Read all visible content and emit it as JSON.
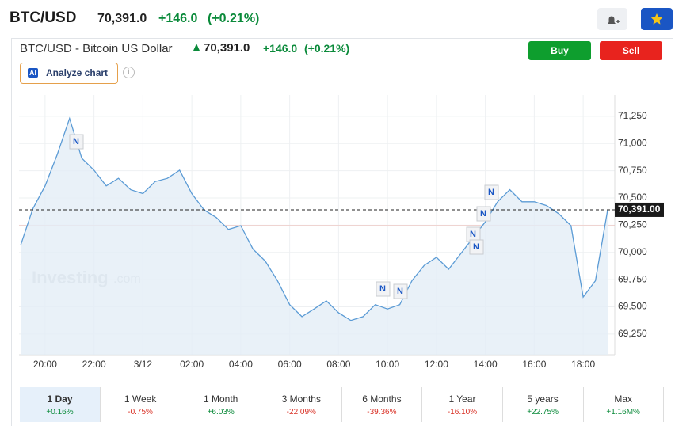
{
  "header": {
    "symbol": "BTC/USD",
    "price": "70,391.0",
    "change": "+146.0",
    "change_pct": "(+0.21%)"
  },
  "subheader": {
    "name": "BTC/USD - Bitcoin US Dollar",
    "price": "70,391.0",
    "change": "+146.0",
    "change_pct": "(+0.21%)"
  },
  "buttons": {
    "buy": "Buy",
    "sell": "Sell",
    "analyze_badge": "AI",
    "analyze": "Analyze chart"
  },
  "watermark": {
    "brand": "Investing",
    "suffix": ".com"
  },
  "chart_data": {
    "type": "line",
    "categories": [
      null,
      null,
      "20:00",
      null,
      null,
      null,
      "22:00",
      null,
      null,
      null,
      "3/12",
      null,
      null,
      null,
      "02:00",
      null,
      null,
      null,
      "04:00",
      null,
      null,
      null,
      "06:00",
      null,
      null,
      null,
      "08:00",
      null,
      null,
      null,
      "10:00",
      null,
      null,
      null,
      "12:00",
      null,
      null,
      null,
      "14:00",
      null,
      null,
      null,
      "16:00",
      null,
      null,
      null,
      "18:00",
      null,
      null
    ],
    "series": [
      {
        "name": "BTC/USD",
        "color": "#5b9bd5",
        "values": [
          70065,
          70400,
          70610,
          70900,
          71230,
          70865,
          70755,
          70610,
          70680,
          70575,
          70540,
          70650,
          70680,
          70755,
          70540,
          70390,
          70320,
          70210,
          70245,
          70030,
          69920,
          69740,
          69520,
          69410,
          69480,
          69555,
          69445,
          69375,
          69410,
          69520,
          69480,
          69520,
          69740,
          69880,
          69955,
          69845,
          69990,
          70135,
          70280,
          70465,
          70575,
          70465,
          70465,
          70430,
          70355,
          70245,
          69590,
          69740,
          70391
        ]
      }
    ],
    "ylim": [
      69060,
      71445
    ],
    "yticks": [
      {
        "value": 69250,
        "label": "69,250"
      },
      {
        "value": 69500,
        "label": "69,500"
      },
      {
        "value": 69750,
        "label": "69,750"
      },
      {
        "value": 70000,
        "label": "70,000"
      },
      {
        "value": 70250,
        "label": "70,250"
      },
      {
        "value": 70500,
        "label": "70,500"
      },
      {
        "value": 70750,
        "label": "70,750"
      },
      {
        "value": 71000,
        "label": "71,000"
      },
      {
        "value": 71250,
        "label": "71,250"
      }
    ],
    "last_price": {
      "value": 70391,
      "label": "70,391.00"
    },
    "reference_line": 70245,
    "grid": true
  },
  "periods": [
    {
      "label": "1 Day",
      "change": "+0.16%"
    },
    {
      "label": "1 Week",
      "change": "-0.75%"
    },
    {
      "label": "1 Month",
      "change": "+6.03%"
    },
    {
      "label": "3 Months",
      "change": "-22.09%"
    },
    {
      "label": "6 Months",
      "change": "-39.36%"
    },
    {
      "label": "1 Year",
      "change": "-16.10%"
    },
    {
      "label": "5 years",
      "change": "+22.75%"
    },
    {
      "label": "Max",
      "change": "+1.16M%"
    }
  ]
}
